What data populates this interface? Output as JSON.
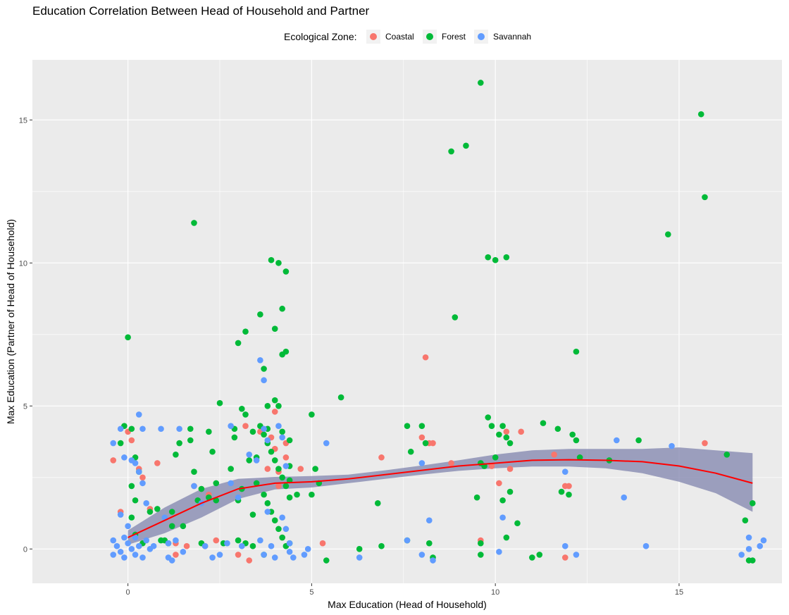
{
  "chart_data": {
    "type": "scatter",
    "title": "Education Correlation Between Head of Household and Partner",
    "xlabel": "Max Education (Head of Household)",
    "ylabel": "Max Education (Partner of Head of Household)",
    "xlim": [
      -2.6,
      17.8
    ],
    "ylim": [
      -1.2,
      17.1
    ],
    "x_ticks": [
      0,
      5,
      10,
      15
    ],
    "y_ticks": [
      0,
      5,
      10,
      15
    ],
    "x_tick_labels": [
      "0",
      "5",
      "10",
      "15"
    ],
    "y_tick_labels": [
      "0",
      "5",
      "10",
      "15"
    ],
    "grid": true,
    "legend": {
      "title": "Ecological Zone:",
      "position": "top"
    },
    "colors": {
      "Coastal": "#F8766D",
      "Forest": "#00BA38",
      "Savannah": "#619CFF",
      "smooth_line": "#FF0000",
      "ribbon": "#7B7FAA",
      "panel": "#EBEBEB",
      "grid": "#FFFFFF"
    },
    "series": [
      {
        "name": "Coastal",
        "points": [
          [
            -0.4,
            3.1
          ],
          [
            -0.2,
            1.3
          ],
          [
            0.0,
            4.1
          ],
          [
            0.1,
            3.8
          ],
          [
            0.3,
            2.8
          ],
          [
            0.4,
            2.5
          ],
          [
            0.8,
            3.0
          ],
          [
            1.3,
            0.2
          ],
          [
            1.6,
            0.1
          ],
          [
            1.8,
            2.2
          ],
          [
            2.0,
            2.1
          ],
          [
            2.1,
            0.1
          ],
          [
            2.4,
            0.3
          ],
          [
            2.2,
            1.9
          ],
          [
            3.0,
            -0.2
          ],
          [
            3.2,
            4.3
          ],
          [
            3.3,
            -0.4
          ],
          [
            3.6,
            4.1
          ],
          [
            3.8,
            2.8
          ],
          [
            3.9,
            3.9
          ],
          [
            4.0,
            3.5
          ],
          [
            4.1,
            2.7
          ],
          [
            4.1,
            2.2
          ],
          [
            4.3,
            3.2
          ],
          [
            4.3,
            3.7
          ],
          [
            4.0,
            4.8
          ],
          [
            4.2,
            0.4
          ],
          [
            4.7,
            2.8
          ],
          [
            5.3,
            0.2
          ],
          [
            6.9,
            3.2
          ],
          [
            8.1,
            6.7
          ],
          [
            8.2,
            3.7
          ],
          [
            8.3,
            3.7
          ],
          [
            8.0,
            3.9
          ],
          [
            9.6,
            0.3
          ],
          [
            9.9,
            2.9
          ],
          [
            10.1,
            2.3
          ],
          [
            10.4,
            2.8
          ],
          [
            10.3,
            4.1
          ],
          [
            10.7,
            4.1
          ],
          [
            11.6,
            3.3
          ],
          [
            11.9,
            2.2
          ],
          [
            12.0,
            2.2
          ],
          [
            11.9,
            -0.3
          ],
          [
            15.7,
            3.7
          ],
          [
            8.8,
            3.0
          ],
          [
            0.6,
            1.4
          ],
          [
            1.3,
            -0.2
          ]
        ]
      },
      {
        "name": "Forest",
        "points": [
          [
            0.0,
            7.4
          ],
          [
            -0.1,
            4.3
          ],
          [
            0.1,
            4.2
          ],
          [
            -0.2,
            3.7
          ],
          [
            0.2,
            3.2
          ],
          [
            0.3,
            2.7
          ],
          [
            0.1,
            2.2
          ],
          [
            0.2,
            1.7
          ],
          [
            0.1,
            1.1
          ],
          [
            0.2,
            0.5
          ],
          [
            0.4,
            0.2
          ],
          [
            0.6,
            1.3
          ],
          [
            0.8,
            1.4
          ],
          [
            1.0,
            0.3
          ],
          [
            1.1,
            0.2
          ],
          [
            1.2,
            1.3
          ],
          [
            1.3,
            3.3
          ],
          [
            1.4,
            3.7
          ],
          [
            1.5,
            0.8
          ],
          [
            1.7,
            4.2
          ],
          [
            1.8,
            2.7
          ],
          [
            1.7,
            3.8
          ],
          [
            1.8,
            11.4
          ],
          [
            1.9,
            1.7
          ],
          [
            2.0,
            2.1
          ],
          [
            2.0,
            0.2
          ],
          [
            2.2,
            4.1
          ],
          [
            2.3,
            3.4
          ],
          [
            2.4,
            2.3
          ],
          [
            2.5,
            5.1
          ],
          [
            2.4,
            1.7
          ],
          [
            2.6,
            0.2
          ],
          [
            2.8,
            2.8
          ],
          [
            2.9,
            4.2
          ],
          [
            3.0,
            7.2
          ],
          [
            3.1,
            4.9
          ],
          [
            3.2,
            7.6
          ],
          [
            3.2,
            4.7
          ],
          [
            3.3,
            3.1
          ],
          [
            3.1,
            2.1
          ],
          [
            3.0,
            1.7
          ],
          [
            3.4,
            4.1
          ],
          [
            3.5,
            2.3
          ],
          [
            3.4,
            1.2
          ],
          [
            3.0,
            0.3
          ],
          [
            3.2,
            0.2
          ],
          [
            3.4,
            0.1
          ],
          [
            3.6,
            8.2
          ],
          [
            3.7,
            6.3
          ],
          [
            3.8,
            5.0
          ],
          [
            3.9,
            10.1
          ],
          [
            4.0,
            7.7
          ],
          [
            4.1,
            10.0
          ],
          [
            4.2,
            8.4
          ],
          [
            4.2,
            6.8
          ],
          [
            4.3,
            9.7
          ],
          [
            4.3,
            6.9
          ],
          [
            4.0,
            5.2
          ],
          [
            4.1,
            5.0
          ],
          [
            3.6,
            4.3
          ],
          [
            3.7,
            4.0
          ],
          [
            3.8,
            3.7
          ],
          [
            3.9,
            3.4
          ],
          [
            4.0,
            3.1
          ],
          [
            4.1,
            2.8
          ],
          [
            4.2,
            2.5
          ],
          [
            4.3,
            2.2
          ],
          [
            3.7,
            1.9
          ],
          [
            3.8,
            1.6
          ],
          [
            3.9,
            1.3
          ],
          [
            4.0,
            1.0
          ],
          [
            4.1,
            0.7
          ],
          [
            4.2,
            0.4
          ],
          [
            4.3,
            0.1
          ],
          [
            3.7,
            -0.2
          ],
          [
            3.8,
            4.2
          ],
          [
            4.2,
            4.1
          ],
          [
            4.4,
            3.8
          ],
          [
            4.4,
            2.9
          ],
          [
            4.4,
            2.4
          ],
          [
            4.4,
            1.8
          ],
          [
            4.4,
            0.2
          ],
          [
            5.0,
            4.7
          ],
          [
            5.1,
            2.8
          ],
          [
            5.2,
            2.3
          ],
          [
            5.0,
            1.9
          ],
          [
            5.4,
            -0.4
          ],
          [
            5.8,
            5.3
          ],
          [
            6.3,
            0.0
          ],
          [
            6.8,
            1.6
          ],
          [
            6.9,
            0.1
          ],
          [
            7.6,
            4.3
          ],
          [
            7.7,
            3.4
          ],
          [
            7.6,
            0.3
          ],
          [
            8.0,
            4.3
          ],
          [
            8.1,
            3.7
          ],
          [
            8.2,
            0.2
          ],
          [
            8.3,
            -0.3
          ],
          [
            8.8,
            13.9
          ],
          [
            8.9,
            8.1
          ],
          [
            9.2,
            14.1
          ],
          [
            9.6,
            16.3
          ],
          [
            9.6,
            3.0
          ],
          [
            9.7,
            2.9
          ],
          [
            9.8,
            4.6
          ],
          [
            9.8,
            10.2
          ],
          [
            9.9,
            4.3
          ],
          [
            10.0,
            10.1
          ],
          [
            10.0,
            3.2
          ],
          [
            10.1,
            4.0
          ],
          [
            10.2,
            4.3
          ],
          [
            10.3,
            10.2
          ],
          [
            10.3,
            3.9
          ],
          [
            10.4,
            3.7
          ],
          [
            10.4,
            2.0
          ],
          [
            10.2,
            1.7
          ],
          [
            10.3,
            0.4
          ],
          [
            10.6,
            0.9
          ],
          [
            9.5,
            1.8
          ],
          [
            9.6,
            0.2
          ],
          [
            9.6,
            -0.2
          ],
          [
            11.0,
            -0.3
          ],
          [
            11.2,
            -0.2
          ],
          [
            11.3,
            4.4
          ],
          [
            11.7,
            4.2
          ],
          [
            11.8,
            2.0
          ],
          [
            12.0,
            1.9
          ],
          [
            12.1,
            4.0
          ],
          [
            12.2,
            3.8
          ],
          [
            12.2,
            6.9
          ],
          [
            12.3,
            3.2
          ],
          [
            13.1,
            3.1
          ],
          [
            13.9,
            3.8
          ],
          [
            14.7,
            11.0
          ],
          [
            15.6,
            15.2
          ],
          [
            15.7,
            12.3
          ],
          [
            16.3,
            3.3
          ],
          [
            16.8,
            1.0
          ],
          [
            16.9,
            -0.4
          ],
          [
            17.0,
            1.6
          ],
          [
            17.0,
            -0.4
          ],
          [
            2.9,
            3.9
          ],
          [
            3.5,
            3.2
          ],
          [
            2.2,
            1.8
          ],
          [
            1.2,
            0.8
          ],
          [
            0.9,
            0.3
          ],
          [
            4.6,
            1.9
          ]
        ]
      },
      {
        "name": "Savannah",
        "points": [
          [
            -0.4,
            3.7
          ],
          [
            -0.2,
            4.2
          ],
          [
            -0.1,
            3.2
          ],
          [
            0.1,
            3.1
          ],
          [
            -0.2,
            1.2
          ],
          [
            0.2,
            3.0
          ],
          [
            0.3,
            4.7
          ],
          [
            0.4,
            4.2
          ],
          [
            0.3,
            2.7
          ],
          [
            0.4,
            2.3
          ],
          [
            0.5,
            1.6
          ],
          [
            0.0,
            0.8
          ],
          [
            -0.4,
            0.3
          ],
          [
            -0.3,
            0.1
          ],
          [
            -0.2,
            -0.1
          ],
          [
            -0.1,
            -0.3
          ],
          [
            0.0,
            0.2
          ],
          [
            0.1,
            0.0
          ],
          [
            0.2,
            -0.2
          ],
          [
            0.3,
            0.1
          ],
          [
            0.4,
            -0.3
          ],
          [
            0.5,
            0.3
          ],
          [
            0.6,
            0.0
          ],
          [
            -0.4,
            -0.2
          ],
          [
            0.2,
            0.4
          ],
          [
            -0.1,
            0.4
          ],
          [
            0.7,
            0.1
          ],
          [
            0.9,
            4.2
          ],
          [
            1.0,
            1.1
          ],
          [
            1.1,
            -0.3
          ],
          [
            1.2,
            -0.4
          ],
          [
            1.3,
            0.3
          ],
          [
            1.4,
            4.2
          ],
          [
            1.5,
            -0.1
          ],
          [
            1.8,
            2.2
          ],
          [
            2.0,
            1.6
          ],
          [
            2.3,
            -0.3
          ],
          [
            2.5,
            -0.2
          ],
          [
            2.7,
            0.2
          ],
          [
            2.8,
            4.3
          ],
          [
            2.8,
            2.3
          ],
          [
            3.0,
            1.8
          ],
          [
            3.1,
            0.1
          ],
          [
            3.3,
            3.3
          ],
          [
            3.5,
            3.1
          ],
          [
            3.6,
            6.6
          ],
          [
            3.7,
            5.9
          ],
          [
            3.7,
            4.2
          ],
          [
            3.8,
            3.8
          ],
          [
            3.8,
            1.3
          ],
          [
            3.6,
            0.3
          ],
          [
            3.7,
            -0.2
          ],
          [
            3.9,
            0.1
          ],
          [
            4.0,
            -0.3
          ],
          [
            4.1,
            4.3
          ],
          [
            4.2,
            3.9
          ],
          [
            4.3,
            2.9
          ],
          [
            4.3,
            0.7
          ],
          [
            4.4,
            0.2
          ],
          [
            4.4,
            -0.1
          ],
          [
            4.5,
            -0.3
          ],
          [
            4.8,
            -0.2
          ],
          [
            4.9,
            0.0
          ],
          [
            5.4,
            3.7
          ],
          [
            6.3,
            -0.3
          ],
          [
            7.6,
            0.3
          ],
          [
            8.0,
            3.0
          ],
          [
            8.0,
            -0.2
          ],
          [
            8.2,
            1.0
          ],
          [
            8.3,
            -0.4
          ],
          [
            10.1,
            -0.1
          ],
          [
            10.2,
            1.1
          ],
          [
            11.9,
            2.7
          ],
          [
            11.9,
            0.1
          ],
          [
            12.2,
            -0.2
          ],
          [
            13.3,
            3.8
          ],
          [
            13.5,
            1.8
          ],
          [
            14.1,
            0.1
          ],
          [
            14.8,
            3.6
          ],
          [
            16.7,
            -0.2
          ],
          [
            16.9,
            0.4
          ],
          [
            16.9,
            0.0
          ],
          [
            17.2,
            0.1
          ],
          [
            17.3,
            0.3
          ],
          [
            2.1,
            0.1
          ],
          [
            1.1,
            0.2
          ],
          [
            4.2,
            1.1
          ]
        ]
      }
    ],
    "smooth": {
      "x": [
        0,
        1,
        2,
        3,
        4,
        5,
        6,
        7,
        8,
        9,
        10,
        11,
        12,
        13,
        14,
        15,
        16,
        17
      ],
      "y": [
        0.4,
        1.0,
        1.6,
        2.1,
        2.3,
        2.35,
        2.45,
        2.6,
        2.75,
        2.9,
        3.0,
        3.1,
        3.12,
        3.1,
        3.05,
        2.9,
        2.65,
        2.3
      ],
      "lower": [
        0.15,
        0.55,
        1.1,
        1.75,
        2.08,
        2.15,
        2.3,
        2.45,
        2.6,
        2.73,
        2.82,
        2.88,
        2.88,
        2.82,
        2.65,
        2.35,
        1.95,
        1.3
      ],
      "upper": [
        0.65,
        1.45,
        2.1,
        2.45,
        2.52,
        2.55,
        2.6,
        2.75,
        2.92,
        3.1,
        3.3,
        3.45,
        3.5,
        3.5,
        3.5,
        3.55,
        3.45,
        3.35
      ]
    }
  }
}
